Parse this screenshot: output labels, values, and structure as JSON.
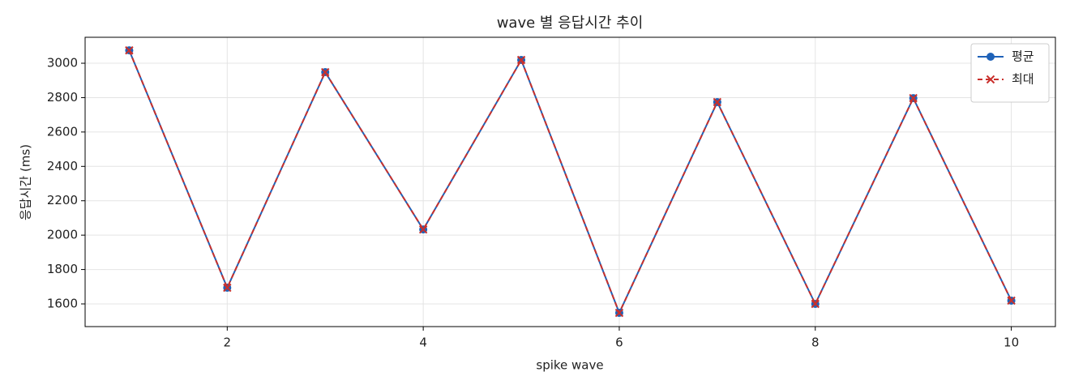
{
  "chart_data": {
    "type": "line",
    "title": "wave 별 응답시간 추이",
    "x_label": "spike wave",
    "y_label": "응답시간 (ms)",
    "x": [
      1,
      2,
      3,
      4,
      5,
      6,
      7,
      8,
      9,
      10
    ],
    "series": [
      {
        "name": "평균",
        "color": "#1f62b8",
        "marker": "circle",
        "dashed": false,
        "values": [
          3075,
          1694,
          2948,
          2033,
          3019,
          1548,
          2774,
          1600,
          2797,
          1619
        ]
      },
      {
        "name": "최대",
        "color": "#c9302c",
        "marker": "x",
        "dashed": true,
        "values": [
          3075,
          1694,
          2948,
          2033,
          3019,
          1548,
          2774,
          1600,
          2797,
          1619
        ]
      }
    ],
    "xlim": [
      0.55,
      10.45
    ],
    "ylim": [
      1468,
      3151
    ],
    "xticks": [
      2,
      4,
      6,
      8,
      10
    ],
    "yticks": [
      1600,
      1800,
      2000,
      2200,
      2400,
      2600,
      2800,
      3000
    ],
    "grid": true,
    "legend": "upper right"
  }
}
